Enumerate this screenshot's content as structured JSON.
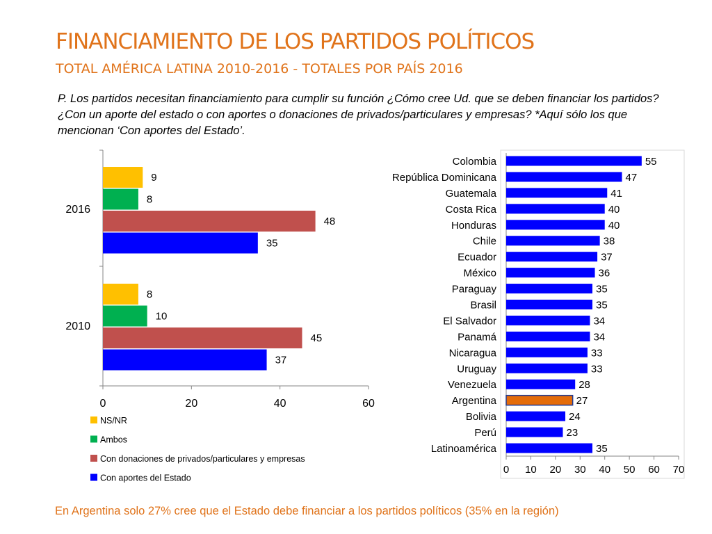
{
  "header": {
    "title": "FINANCIAMIENTO DE LOS PARTIDOS POLÍTICOS",
    "subtitle": "TOTAL AMÉRICA LATINA 2010-2016 - TOTALES POR PAÍS 2016",
    "question": "P. Los partidos necesitan financiamiento para cumplir su función ¿Cómo cree Ud. que se deben financiar los partidos? ¿Con un aporte del estado o con aportes o donaciones de privados/particulares y empresas? *Aquí sólo los que mencionan ‘Con aportes del Estado’."
  },
  "footer": {
    "note": "En Argentina solo 27% cree que el Estado debe financiar a los partidos políticos (35% en la región)"
  },
  "colors": {
    "accent": "#e0731a",
    "ns_nr": "#ffc000",
    "ambos": "#00b050",
    "privados": "#c0504d",
    "estado": "#0000ff",
    "argentina": "#e46c0a"
  },
  "chart_data": [
    {
      "type": "bar",
      "orientation": "horizontal",
      "categories": [
        "2016",
        "2010"
      ],
      "series": [
        {
          "name": "NS/NR",
          "color": "#ffc000",
          "values": [
            9,
            8
          ]
        },
        {
          "name": "Ambos",
          "color": "#00b050",
          "values": [
            8,
            10
          ]
        },
        {
          "name": "Con donaciones de privados/particulares y empresas",
          "color": "#c0504d",
          "values": [
            48,
            45
          ]
        },
        {
          "name": "Con aportes del Estado",
          "color": "#0000ff",
          "values": [
            35,
            37
          ]
        }
      ],
      "xlim": [
        0,
        60
      ],
      "xticks": [
        "0",
        "20",
        "40",
        "60"
      ],
      "legend_position": "bottom",
      "grid": false
    },
    {
      "type": "bar",
      "orientation": "horizontal",
      "categories": [
        "Colombia",
        "República Dominicana",
        "Guatemala",
        "Costa Rica",
        "Honduras",
        "Chile",
        "Ecuador",
        "México",
        "Paraguay",
        "Brasil",
        "El Salvador",
        "Panamá",
        "Nicaragua",
        "Uruguay",
        "Venezuela",
        "Argentina",
        "Bolivia",
        "Perú",
        "Latinoamérica"
      ],
      "values": [
        55,
        47,
        41,
        40,
        40,
        38,
        37,
        36,
        35,
        35,
        34,
        34,
        33,
        33,
        28,
        27,
        24,
        23,
        35
      ],
      "highlight": "Argentina",
      "xlim": [
        0,
        70
      ],
      "xticks": [
        "0",
        "10",
        "20",
        "30",
        "40",
        "50",
        "60",
        "70"
      ],
      "grid": false
    }
  ]
}
